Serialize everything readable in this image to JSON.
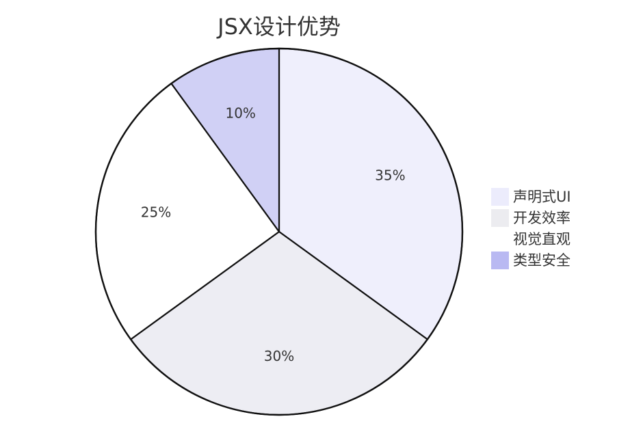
{
  "chart_data": {
    "type": "pie",
    "title": "JSX设计优势",
    "categories": [
      "声明式UI",
      "开发效率",
      "视觉直观",
      "类型安全"
    ],
    "values": [
      35,
      30,
      25,
      10
    ],
    "value_labels": [
      "35%",
      "30%",
      "25%",
      "10%"
    ],
    "colors": [
      "#efeffc",
      "#ededf3",
      "#ffffff",
      "#d0d0f5"
    ],
    "legend_colors": [
      "#ececfc",
      "#ececf0",
      "#ffffff",
      "#b9b9f2"
    ],
    "stroke_color": "#111111",
    "legend_position": "right",
    "start_angle_deg": 0,
    "direction": "clockwise"
  }
}
